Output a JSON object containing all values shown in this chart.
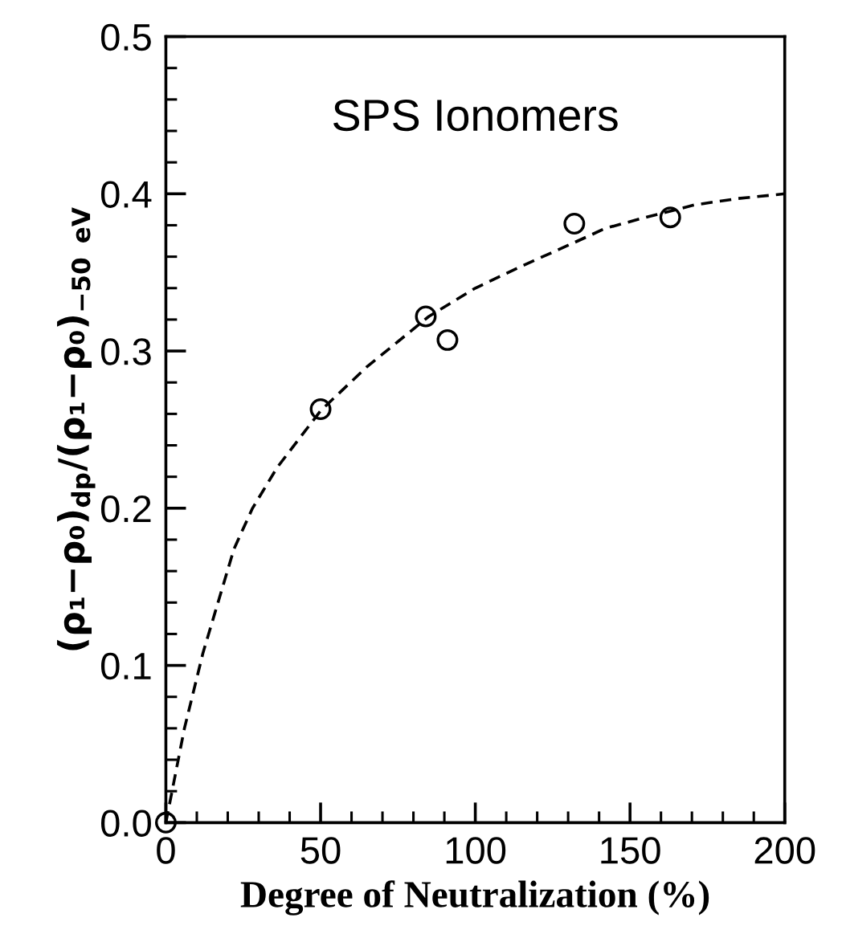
{
  "chart_data": {
    "type": "scatter",
    "xlabel": "Degree of Neutralization (%)",
    "ylabel": "(ρ₁−ρ₀)$_{dp}$/(ρ₁−ρ₀)$_{−50 eV}$",
    "annotations": [
      "SPS Ionomers"
    ],
    "series": [
      {
        "color": "#000000",
        "marker": "circle",
        "x": [
          0,
          50,
          84,
          91,
          132,
          163
        ],
        "values": [
          0.0,
          0.263,
          0.322,
          0.307,
          0.381,
          0.385
        ]
      },
      {
        "type": "line",
        "color": "#000000",
        "line_style": "dashed",
        "marker": "none",
        "x": [
          0,
          3,
          6,
          12,
          22,
          28,
          36,
          50,
          65,
          85,
          100,
          115,
          132,
          142,
          155,
          171,
          185,
          200
        ],
        "values": [
          0.0,
          0.03,
          0.06,
          0.108,
          0.174,
          0.2,
          0.226,
          0.262,
          0.29,
          0.322,
          0.34,
          0.354,
          0.369,
          0.378,
          0.385,
          0.393,
          0.397,
          0.4
        ]
      }
    ],
    "xlim": [
      0,
      200
    ],
    "xticks": [
      0,
      50,
      100,
      150,
      200
    ],
    "ylim": [
      0,
      0.5
    ],
    "yticks": [
      {
        "value": 0,
        "label": "0.0"
      },
      0.1,
      0.2,
      0.3,
      0.4,
      0.5
    ],
    "grid": false,
    "legend": false
  }
}
